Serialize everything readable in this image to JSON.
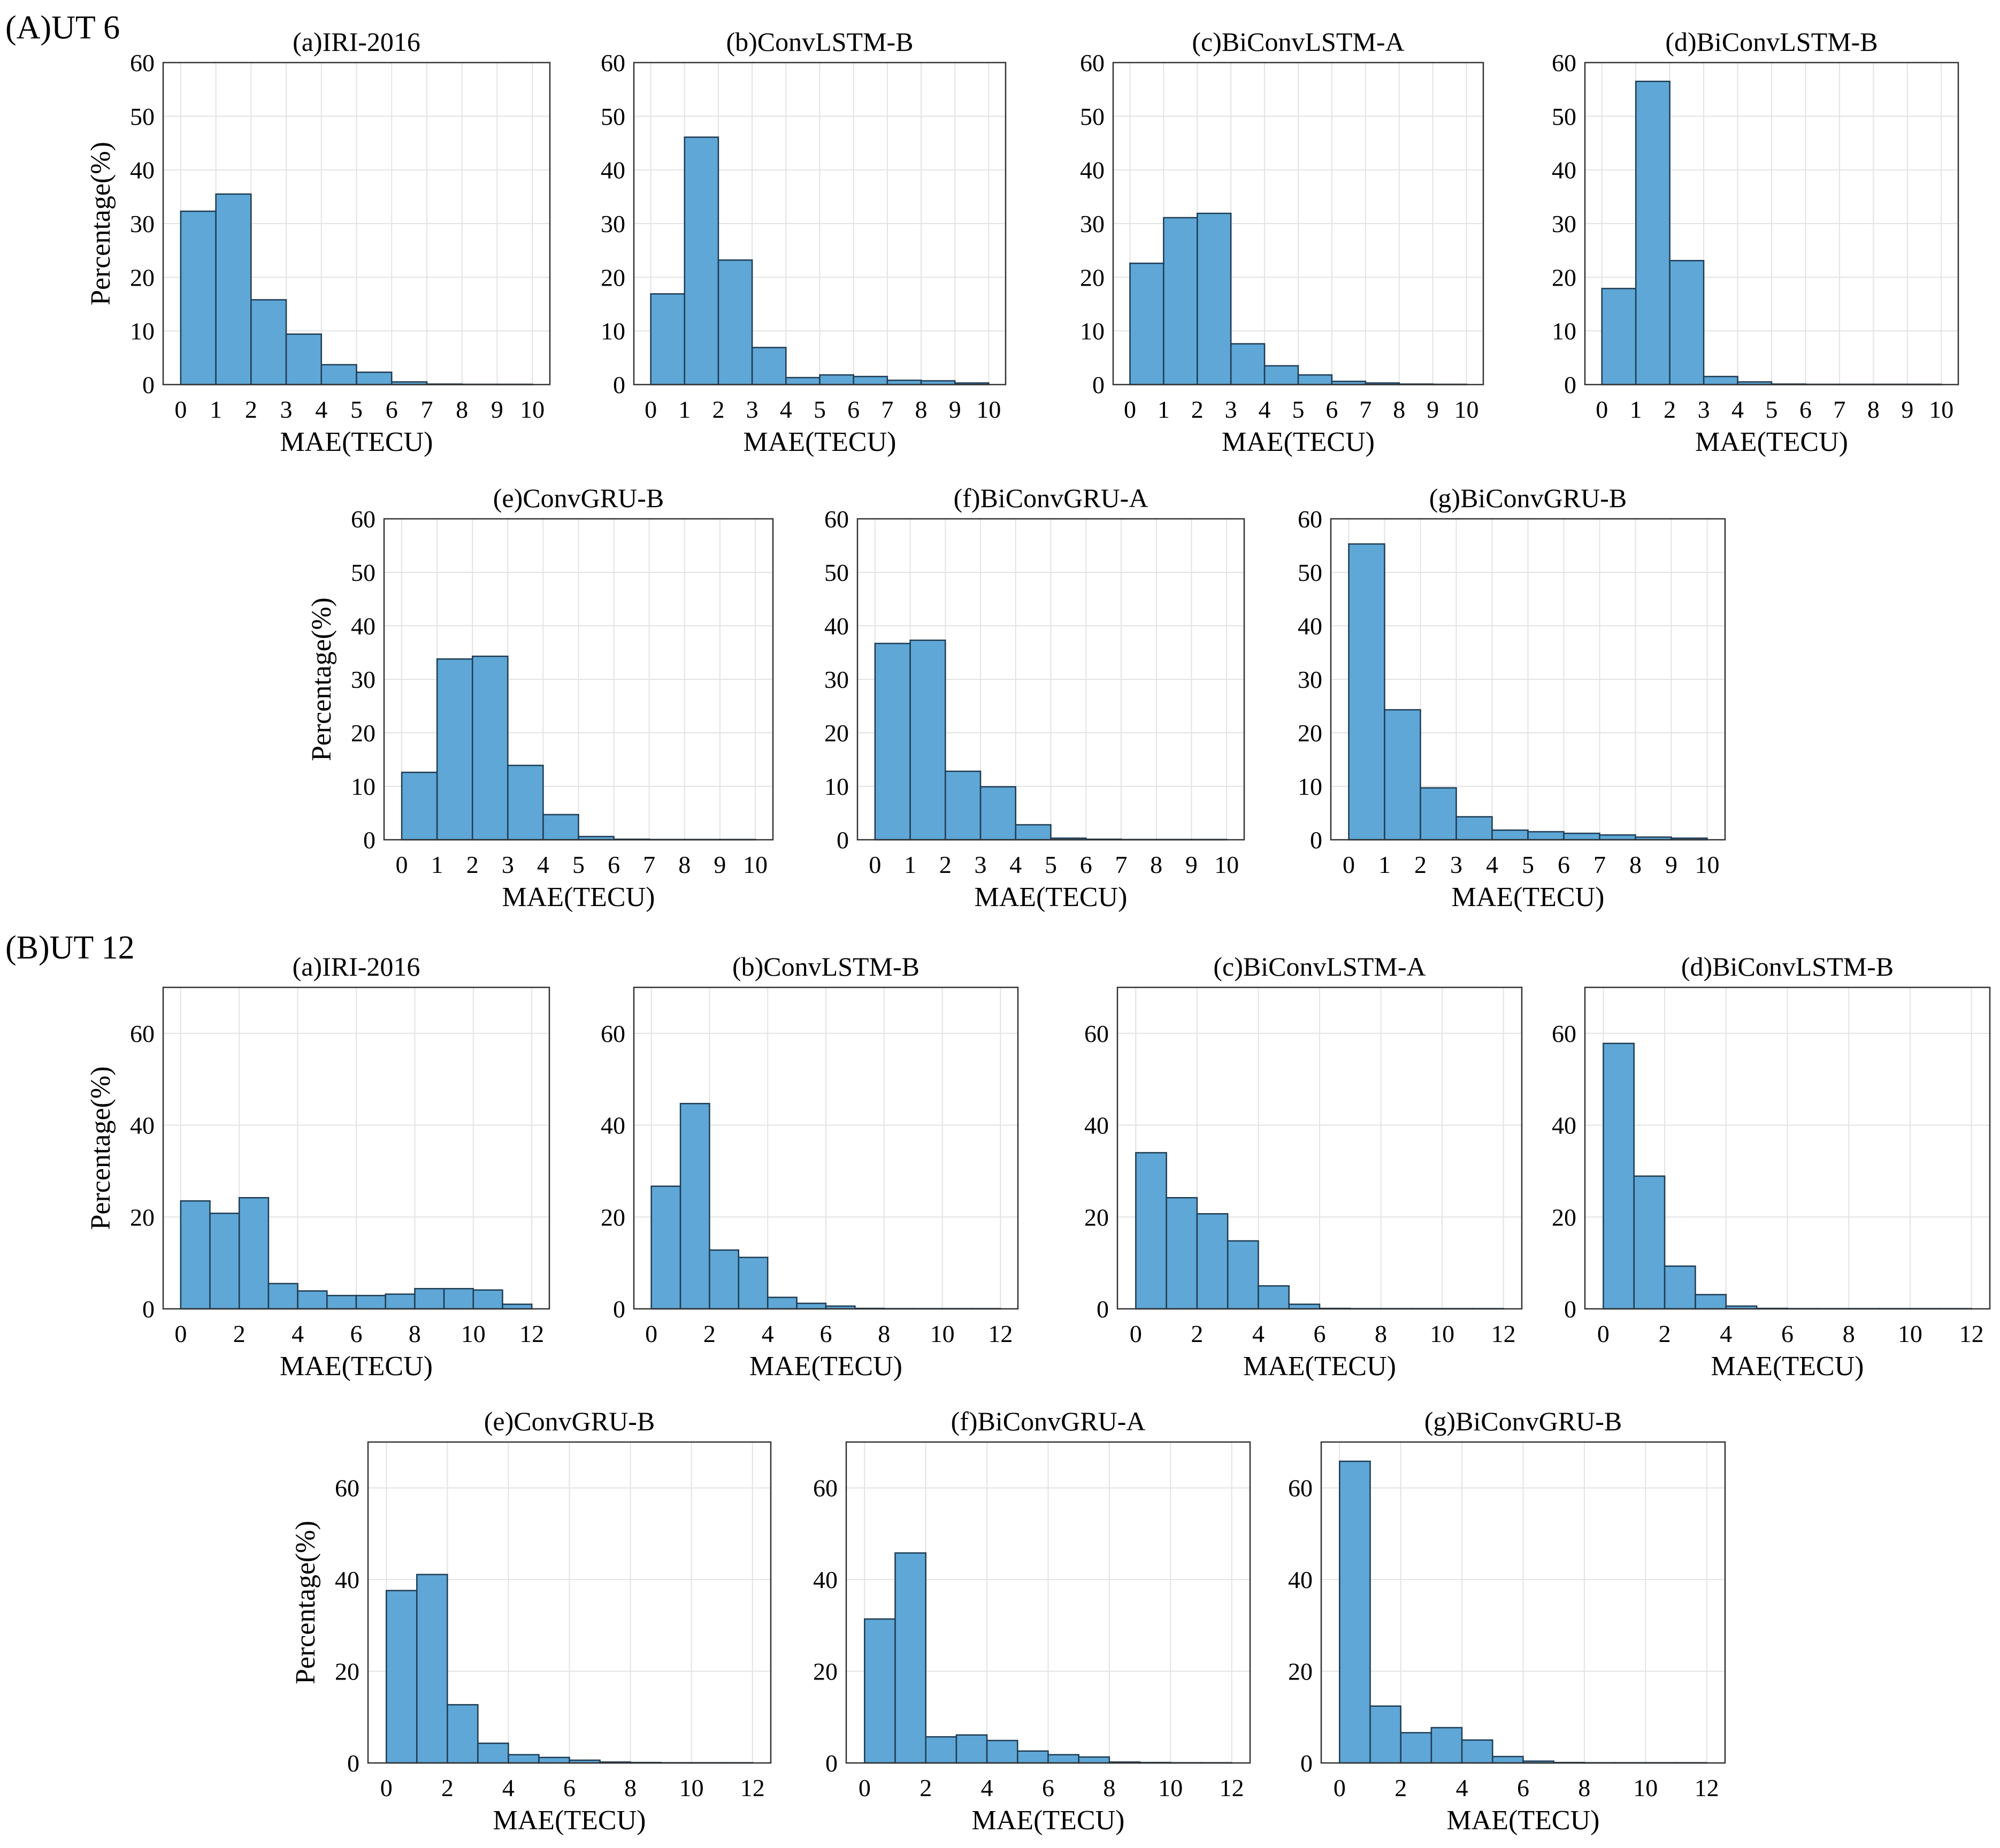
{
  "sections": [
    {
      "label": "(A)UT 6"
    },
    {
      "label": "(B)UT 12"
    }
  ],
  "chart_data": [
    {
      "type": "bar",
      "section": 0,
      "title": "(a)IRI-2016",
      "xlabel": "MAE(TECU)",
      "ylabel": "Percentage(%)",
      "xlim": [
        0,
        10
      ],
      "ylim": [
        0,
        60
      ],
      "bin_width": 1,
      "xticks": [
        0,
        1,
        2,
        3,
        4,
        5,
        6,
        7,
        8,
        9,
        10
      ],
      "yticks": [
        0,
        10,
        20,
        30,
        40,
        50,
        60
      ],
      "values": [
        32.3,
        35.5,
        15.8,
        9.4,
        3.7,
        2.3,
        0.5,
        0.1,
        0.05,
        0.05
      ]
    },
    {
      "type": "bar",
      "section": 0,
      "title": "(b)ConvLSTM-B",
      "xlabel": "MAE(TECU)",
      "ylabel": "",
      "xlim": [
        0,
        10
      ],
      "ylim": [
        0,
        60
      ],
      "bin_width": 1,
      "xticks": [
        0,
        1,
        2,
        3,
        4,
        5,
        6,
        7,
        8,
        9,
        10
      ],
      "yticks": [
        0,
        10,
        20,
        30,
        40,
        50,
        60
      ],
      "values": [
        16.9,
        46.1,
        23.2,
        6.9,
        1.3,
        1.8,
        1.5,
        0.8,
        0.7,
        0.3
      ]
    },
    {
      "type": "bar",
      "section": 0,
      "title": "(c)BiConvLSTM-A",
      "xlabel": "MAE(TECU)",
      "ylabel": "",
      "xlim": [
        0,
        10
      ],
      "ylim": [
        0,
        60
      ],
      "bin_width": 1,
      "xticks": [
        0,
        1,
        2,
        3,
        4,
        5,
        6,
        7,
        8,
        9,
        10
      ],
      "yticks": [
        0,
        10,
        20,
        30,
        40,
        50,
        60
      ],
      "values": [
        22.6,
        31.1,
        31.9,
        7.6,
        3.5,
        1.8,
        0.6,
        0.3,
        0.1,
        0.05
      ]
    },
    {
      "type": "bar",
      "section": 0,
      "title": "(d)BiConvLSTM-B",
      "xlabel": "MAE(TECU)",
      "ylabel": "",
      "xlim": [
        0,
        10
      ],
      "ylim": [
        0,
        60
      ],
      "bin_width": 1,
      "xticks": [
        0,
        1,
        2,
        3,
        4,
        5,
        6,
        7,
        8,
        9,
        10
      ],
      "yticks": [
        0,
        10,
        20,
        30,
        40,
        50,
        60
      ],
      "values": [
        17.9,
        56.5,
        23.1,
        1.5,
        0.5,
        0.1,
        0.05,
        0.05,
        0.05,
        0.05
      ]
    },
    {
      "type": "bar",
      "section": 0,
      "title": "(e)ConvGRU-B",
      "xlabel": "MAE(TECU)",
      "ylabel": "Percentage(%)",
      "xlim": [
        0,
        10
      ],
      "ylim": [
        0,
        60
      ],
      "bin_width": 1,
      "xticks": [
        0,
        1,
        2,
        3,
        4,
        5,
        6,
        7,
        8,
        9,
        10
      ],
      "yticks": [
        0,
        10,
        20,
        30,
        40,
        50,
        60
      ],
      "values": [
        12.6,
        33.8,
        34.3,
        13.9,
        4.7,
        0.6,
        0.1,
        0.05,
        0.05,
        0.05
      ]
    },
    {
      "type": "bar",
      "section": 0,
      "title": "(f)BiConvGRU-A",
      "xlabel": "MAE(TECU)",
      "ylabel": "",
      "xlim": [
        0,
        10
      ],
      "ylim": [
        0,
        60
      ],
      "bin_width": 1,
      "xticks": [
        0,
        1,
        2,
        3,
        4,
        5,
        6,
        7,
        8,
        9,
        10
      ],
      "yticks": [
        0,
        10,
        20,
        30,
        40,
        50,
        60
      ],
      "values": [
        36.7,
        37.3,
        12.8,
        9.9,
        2.8,
        0.3,
        0.1,
        0.05,
        0.05,
        0.05
      ]
    },
    {
      "type": "bar",
      "section": 0,
      "title": "(g)BiConvGRU-B",
      "xlabel": "MAE(TECU)",
      "ylabel": "",
      "xlim": [
        0,
        10
      ],
      "ylim": [
        0,
        60
      ],
      "bin_width": 1,
      "xticks": [
        0,
        1,
        2,
        3,
        4,
        5,
        6,
        7,
        8,
        9,
        10
      ],
      "yticks": [
        0,
        10,
        20,
        30,
        40,
        50,
        60
      ],
      "values": [
        55.3,
        24.3,
        9.7,
        4.3,
        1.8,
        1.5,
        1.2,
        0.9,
        0.5,
        0.3
      ]
    },
    {
      "type": "bar",
      "section": 1,
      "title": "(a)IRI-2016",
      "xlabel": "MAE(TECU)",
      "ylabel": "Percentage(%)",
      "xlim": [
        0,
        12
      ],
      "ylim": [
        0,
        70
      ],
      "bin_width": 1,
      "xticks": [
        0,
        2,
        4,
        6,
        8,
        10,
        12
      ],
      "yticks": [
        0,
        20,
        40,
        60
      ],
      "values": [
        23.5,
        20.8,
        24.2,
        5.5,
        3.9,
        2.9,
        2.9,
        3.2,
        4.4,
        4.4,
        4.1,
        1.0
      ]
    },
    {
      "type": "bar",
      "section": 1,
      "title": "(b)ConvLSTM-B",
      "xlabel": "MAE(TECU)",
      "ylabel": "",
      "xlim": [
        0,
        12
      ],
      "ylim": [
        0,
        70
      ],
      "bin_width": 1,
      "xticks": [
        0,
        2,
        4,
        6,
        8,
        10,
        12
      ],
      "yticks": [
        0,
        20,
        40,
        60
      ],
      "values": [
        26.7,
        44.7,
        12.8,
        11.2,
        2.5,
        1.2,
        0.6,
        0.1,
        0.05,
        0.05,
        0.05,
        0.05
      ]
    },
    {
      "type": "bar",
      "section": 1,
      "title": "(c)BiConvLSTM-A",
      "xlabel": "MAE(TECU)",
      "ylabel": "",
      "xlim": [
        0,
        12
      ],
      "ylim": [
        0,
        70
      ],
      "bin_width": 1,
      "xticks": [
        0,
        2,
        4,
        6,
        8,
        10,
        12
      ],
      "yticks": [
        0,
        20,
        40,
        60
      ],
      "values": [
        34.0,
        24.2,
        20.7,
        14.8,
        5.0,
        1.0,
        0.1,
        0.05,
        0.05,
        0.05,
        0.05,
        0.05
      ]
    },
    {
      "type": "bar",
      "section": 1,
      "title": "(d)BiConvLSTM-B",
      "xlabel": "MAE(TECU)",
      "ylabel": "",
      "xlim": [
        0,
        12
      ],
      "ylim": [
        0,
        70
      ],
      "bin_width": 1,
      "xticks": [
        0,
        2,
        4,
        6,
        8,
        10,
        12
      ],
      "yticks": [
        0,
        20,
        40,
        60
      ],
      "values": [
        57.8,
        28.9,
        9.3,
        3.1,
        0.6,
        0.1,
        0.05,
        0.05,
        0.05,
        0.05,
        0.05,
        0.05
      ]
    },
    {
      "type": "bar",
      "section": 1,
      "title": "(e)ConvGRU-B",
      "xlabel": "MAE(TECU)",
      "ylabel": "Percentage(%)",
      "xlim": [
        0,
        12
      ],
      "ylim": [
        0,
        70
      ],
      "bin_width": 1,
      "xticks": [
        0,
        2,
        4,
        6,
        8,
        10,
        12
      ],
      "yticks": [
        0,
        20,
        40,
        60
      ],
      "values": [
        37.6,
        41.1,
        12.7,
        4.3,
        1.8,
        1.2,
        0.6,
        0.2,
        0.1,
        0.05,
        0.05,
        0.05
      ]
    },
    {
      "type": "bar",
      "section": 1,
      "title": "(f)BiConvGRU-A",
      "xlabel": "MAE(TECU)",
      "ylabel": "",
      "xlim": [
        0,
        12
      ],
      "ylim": [
        0,
        70
      ],
      "bin_width": 1,
      "xticks": [
        0,
        2,
        4,
        6,
        8,
        10,
        12
      ],
      "yticks": [
        0,
        20,
        40,
        60
      ],
      "values": [
        31.4,
        45.8,
        5.7,
        6.1,
        4.9,
        2.6,
        1.8,
        1.3,
        0.2,
        0.1,
        0.05,
        0.05
      ]
    },
    {
      "type": "bar",
      "section": 1,
      "title": "(g)BiConvGRU-B",
      "xlabel": "MAE(TECU)",
      "ylabel": "",
      "xlim": [
        0,
        12
      ],
      "ylim": [
        0,
        70
      ],
      "bin_width": 1,
      "xticks": [
        0,
        2,
        4,
        6,
        8,
        10,
        12
      ],
      "yticks": [
        0,
        20,
        40,
        60
      ],
      "values": [
        65.8,
        12.4,
        6.6,
        7.7,
        5.0,
        1.4,
        0.4,
        0.1,
        0.05,
        0.05,
        0.05,
        0.05
      ]
    }
  ]
}
